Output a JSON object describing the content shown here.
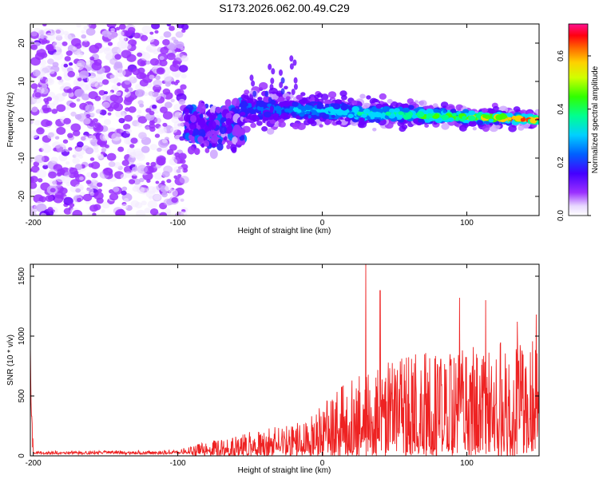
{
  "title": "S173.2026.062.00.49.C29",
  "chart_data": [
    {
      "type": "heatmap",
      "xlabel": "Height of straight line (km)",
      "ylabel": "Frequency (Hz)",
      "xlim": [
        -202,
        150
      ],
      "ylim": [
        -25,
        25
      ],
      "xticks": [
        -200,
        -100,
        0,
        100
      ],
      "yticks": [
        -20,
        -10,
        0,
        10,
        20
      ],
      "colorbar": {
        "label": "Normalized spectral amplitude",
        "range": [
          0,
          0.72
        ],
        "ticks": [
          0.0,
          0.2,
          0.4,
          0.6
        ]
      },
      "regions": [
        {
          "name": "noise",
          "x": [
            -202,
            -95
          ],
          "freq_spread": 25,
          "amplitude": "low"
        },
        {
          "name": "onset",
          "x": [
            -95,
            -55
          ],
          "freq_center": -2,
          "freq_spread": 8,
          "amplitude": "low-medium"
        },
        {
          "name": "main-band",
          "x": [
            -55,
            150
          ],
          "freq_center_start": 3,
          "freq_center_end": 0,
          "freq_spread_start": 6,
          "freq_spread_end": 2,
          "amplitude_peak": 0.7
        }
      ]
    },
    {
      "type": "line",
      "xlabel": "Height of straight line (km)",
      "ylabel": "SNR (10 * v/v)",
      "xlim": [
        -202,
        150
      ],
      "ylim": [
        0,
        1600
      ],
      "xticks": [
        -200,
        -100,
        0,
        100
      ],
      "yticks": [
        0,
        500,
        1000,
        1500
      ],
      "color": "#ee2222",
      "envelope": [
        {
          "x": -200,
          "y": 20
        },
        {
          "x": -100,
          "y": 25
        },
        {
          "x": -85,
          "y": 100
        },
        {
          "x": -50,
          "y": 200
        },
        {
          "x": -10,
          "y": 300
        },
        {
          "x": 10,
          "y": 550
        },
        {
          "x": 30,
          "y": 750
        },
        {
          "x": 60,
          "y": 850
        },
        {
          "x": 100,
          "y": 900
        },
        {
          "x": 150,
          "y": 1000
        }
      ],
      "peaks": [
        {
          "x": 30,
          "y": 1600
        },
        {
          "x": 40,
          "y": 1380
        },
        {
          "x": 95,
          "y": 1320
        },
        {
          "x": 113,
          "y": 1300
        },
        {
          "x": 135,
          "y": 1120
        },
        {
          "x": 148,
          "y": 1180
        }
      ]
    }
  ]
}
